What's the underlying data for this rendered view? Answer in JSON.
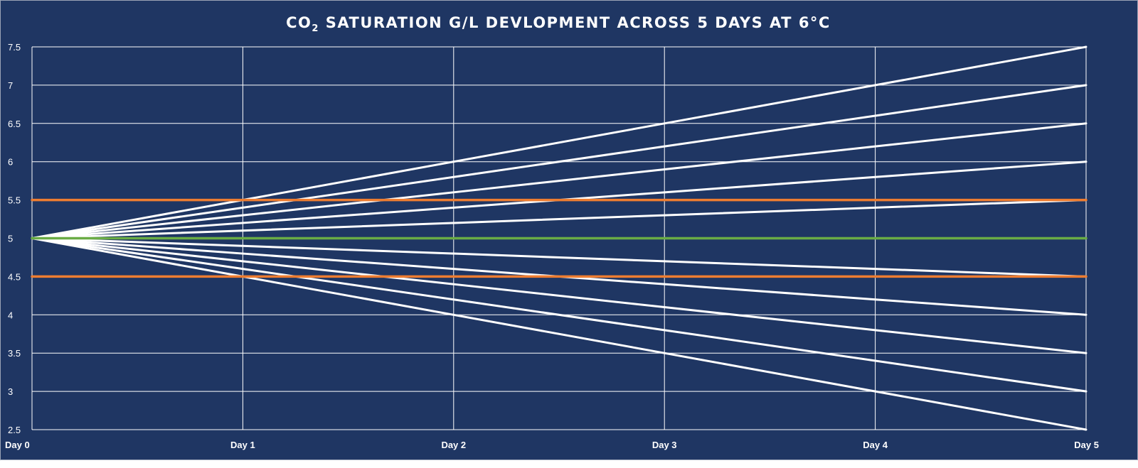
{
  "chart_data": {
    "type": "line",
    "title": "CO₂ Saturation G/L Devlopment across 5 days at 6°C",
    "title_parts": {
      "prefix": "CO",
      "subscript": "2",
      "rest": " SATURATION G/L DEVLOPMENT ACROSS 5 DAYS AT 6°C"
    },
    "xlabel": "",
    "ylabel": "",
    "categories": [
      "Day 0",
      "Day 1",
      "Day 2",
      "Day 3",
      "Day 4",
      "Day 5"
    ],
    "y_ticks": [
      "7.5",
      "7",
      "6.5",
      "6",
      "5.5",
      "5",
      "4.5",
      "4",
      "3.5",
      "3",
      "2.5"
    ],
    "ylim": [
      2.5,
      7.5
    ],
    "grid": true,
    "legend": "none",
    "colors": {
      "background": "#1f3663",
      "grid": "#ffffff",
      "trend_lines": "#ffffff",
      "limits": "#ee7d31",
      "target": "#6aac45"
    },
    "series": [
      {
        "role": "trend",
        "values": [
          5,
          5.5,
          6.0,
          6.5,
          7.0,
          7.5
        ]
      },
      {
        "role": "trend",
        "values": [
          5,
          5.4,
          5.8,
          6.2,
          6.6,
          7.0
        ]
      },
      {
        "role": "trend",
        "values": [
          5,
          5.3,
          5.6,
          5.9,
          6.2,
          6.5
        ]
      },
      {
        "role": "trend",
        "values": [
          5,
          5.2,
          5.4,
          5.6,
          5.8,
          6.0
        ]
      },
      {
        "role": "trend",
        "values": [
          5,
          5.1,
          5.2,
          5.3,
          5.4,
          5.5
        ]
      },
      {
        "role": "trend",
        "values": [
          5,
          4.9,
          4.8,
          4.7,
          4.6,
          4.5
        ]
      },
      {
        "role": "trend",
        "values": [
          5,
          4.8,
          4.6,
          4.4,
          4.2,
          4.0
        ]
      },
      {
        "role": "trend",
        "values": [
          5,
          4.7,
          4.4,
          4.1,
          3.8,
          3.5
        ]
      },
      {
        "role": "trend",
        "values": [
          5,
          4.6,
          4.2,
          3.8,
          3.4,
          3.0
        ]
      },
      {
        "role": "trend",
        "values": [
          5,
          4.5,
          4.0,
          3.5,
          3.0,
          2.5
        ]
      },
      {
        "role": "upper-limit",
        "values": [
          5.5,
          5.5,
          5.5,
          5.5,
          5.5,
          5.5
        ]
      },
      {
        "role": "lower-limit",
        "values": [
          4.5,
          4.5,
          4.5,
          4.5,
          4.5,
          4.5
        ]
      },
      {
        "role": "target",
        "values": [
          5,
          5,
          5,
          5,
          5,
          5
        ]
      }
    ]
  }
}
